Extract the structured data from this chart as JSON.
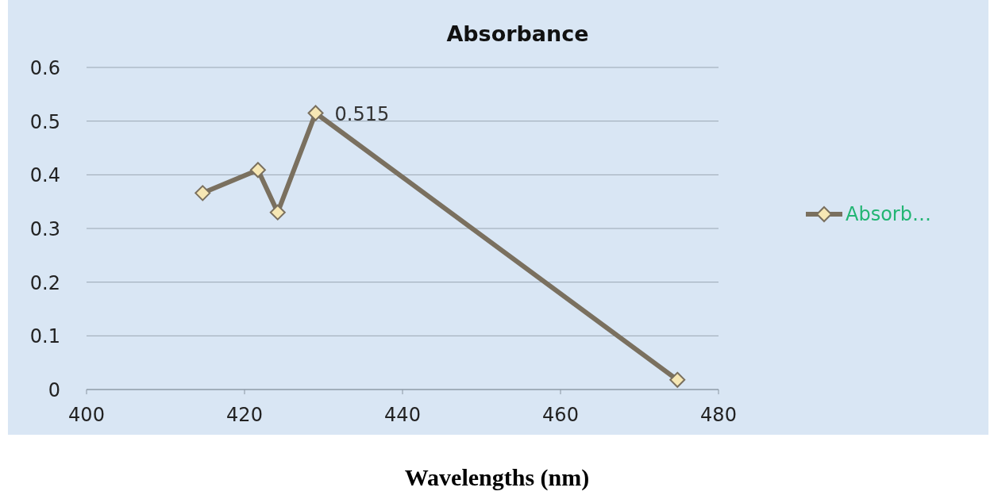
{
  "chart_data": {
    "type": "line",
    "title": "Absorbance",
    "xlabel": "Wavelengths (nm)",
    "x": [
      414.7,
      421.7,
      424.2,
      429,
      474.8
    ],
    "series": [
      {
        "name": "Absorb…",
        "color": "#7a705f",
        "values": [
          0.366,
          0.409,
          0.33,
          0.515,
          0.018
        ],
        "value_labels": [
          null,
          null,
          null,
          "0.515",
          null
        ]
      }
    ],
    "xlim": [
      400,
      480
    ],
    "xticks": [
      400,
      420,
      440,
      460,
      480
    ],
    "ylim": [
      0,
      0.6
    ],
    "yticks": [
      0,
      0.1,
      0.2,
      0.3,
      0.4,
      0.5,
      0.6
    ],
    "grid": "y",
    "legend": "right",
    "marker": "diamond",
    "line_style": "solid"
  }
}
